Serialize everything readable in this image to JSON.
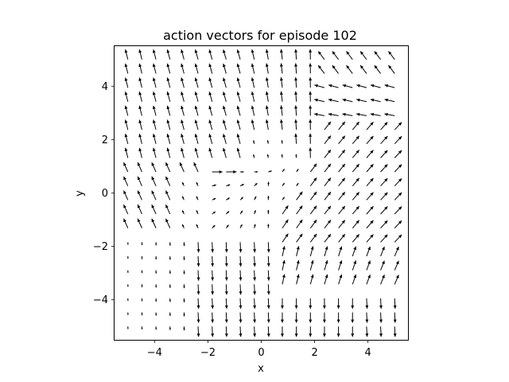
{
  "chart_data": {
    "type": "quiver",
    "title": "action vectors for episode 102",
    "xlabel": "x",
    "ylabel": "y",
    "xlim": [
      -5.5,
      5.5
    ],
    "ylim": [
      -5.5,
      5.5
    ],
    "xticks": [
      -4,
      -2,
      0,
      2,
      4
    ],
    "yticks": [
      -4,
      -2,
      0,
      2,
      4
    ],
    "xtick_labels": [
      "−4",
      "−2",
      "0",
      "2",
      "4"
    ],
    "ytick_labels": [
      "−4",
      "−2",
      "0",
      "2",
      "4"
    ],
    "grid": false,
    "arrow_color": "#000000",
    "grid_points": {
      "x_range": [
        -5,
        5
      ],
      "y_range": [
        -5,
        5
      ],
      "count": 20
    },
    "field_description": "action vectors on a 20x20 grid over [-5,5]x[-5,5]"
  }
}
